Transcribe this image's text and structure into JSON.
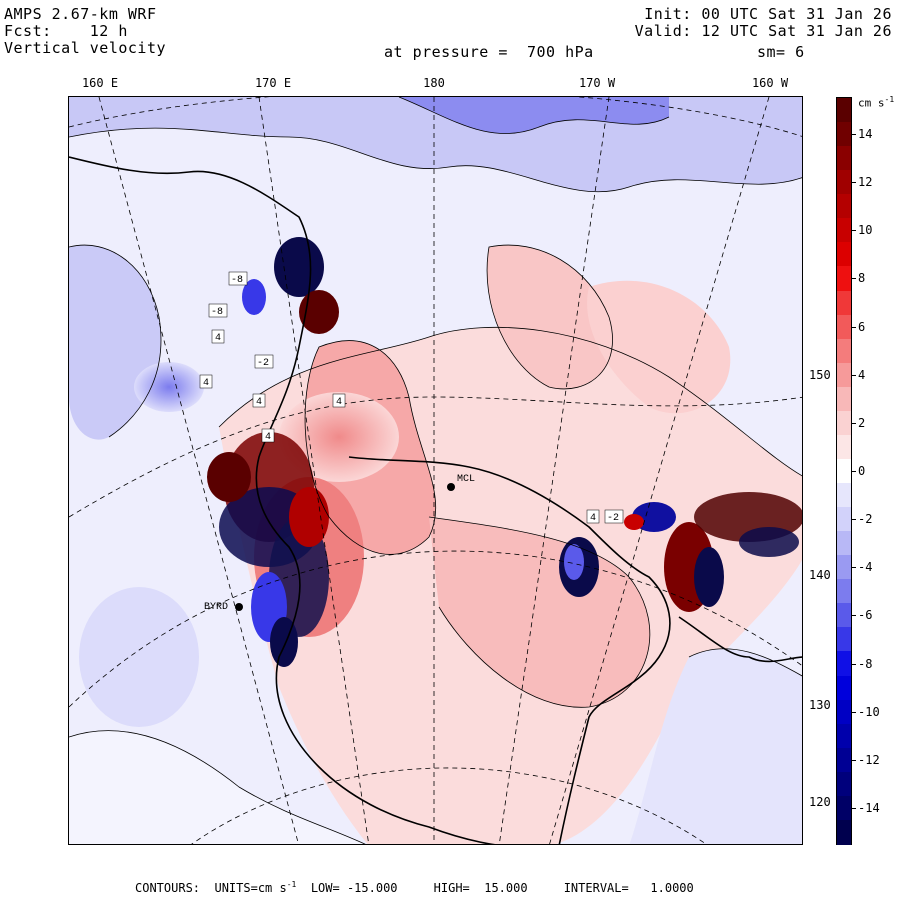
{
  "header": {
    "model": "AMPS 2.67-km WRF",
    "forecast": "Fcst:    12 h",
    "field": "Vertical velocity",
    "init": "Init: 00 UTC Sat 31 Jan 26",
    "valid": "Valid: 12 UTC Sat 31 Jan 26",
    "pressure": "at pressure =  700 hPa",
    "smoothing": "sm= 6"
  },
  "lon_labels": [
    "160 E",
    "170 E",
    "180",
    "170 W",
    "160 W"
  ],
  "lat_labels": [
    "150 W",
    "140 W",
    "130 W",
    "120 W"
  ],
  "stations": [
    "MCL",
    "BYRD"
  ],
  "contour_labels": [
    "4",
    "4",
    "4",
    "4",
    "4",
    "4",
    "-8",
    "-8",
    "-2",
    "-2"
  ],
  "colorbar": {
    "unit": "cm s",
    "unit_exp": "-1",
    "tick_labels": [
      "14",
      "12",
      "10",
      "8",
      "6",
      "4",
      "2",
      "0",
      "-2",
      "-4",
      "-6",
      "-8",
      "-10",
      "-12",
      "-14"
    ],
    "colors": [
      "#5a0000",
      "#700000",
      "#8a0000",
      "#a00000",
      "#b40000",
      "#c80000",
      "#dc0000",
      "#ee1010",
      "#f03838",
      "#f25a5a",
      "#f47c7c",
      "#f69a9a",
      "#f8b8b8",
      "#fad2d2",
      "#fce6e6",
      "#ffffff",
      "#e6e6fc",
      "#d2d2fa",
      "#b8b8f6",
      "#9a9af2",
      "#7c7cee",
      "#5a5aea",
      "#3838e8",
      "#1010e6",
      "#0000dc",
      "#0000c4",
      "#0000ac",
      "#000094",
      "#00007c",
      "#000066",
      "#00004e"
    ]
  },
  "footer": {
    "contours": "CONTOURS:",
    "units": "UNITS=cm s",
    "units_exp": "-1",
    "low": "LOW= -15.000",
    "high": "HIGH=  15.000",
    "interval": "INTERVAL=   1.0000"
  }
}
